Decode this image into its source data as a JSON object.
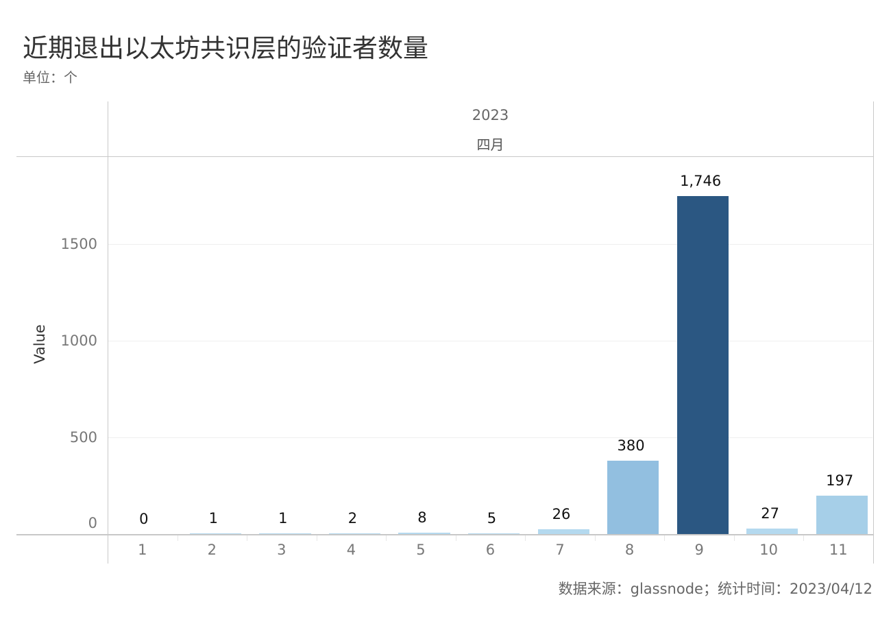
{
  "title": "近期退出以太坊共识层的验证者数量",
  "subtitle": "单位：个",
  "header": {
    "year": "2023",
    "month": "四月"
  },
  "footer": "数据来源：glassnode；统计时间：2023/04/12",
  "colors": {
    "dark": "#2b5782",
    "mid": "#92bfe0",
    "light": "#b4d9ef",
    "light2": "#a6cfe8"
  },
  "chart_data": {
    "type": "bar",
    "title": "近期退出以太坊共识层的验证者数量",
    "subtitle": "单位：个",
    "xlabel": "",
    "ylabel": "Value",
    "column_header": [
      "2023",
      "四月"
    ],
    "categories": [
      "1",
      "2",
      "3",
      "4",
      "5",
      "6",
      "7",
      "8",
      "9",
      "10",
      "11"
    ],
    "values": [
      0,
      1,
      1,
      2,
      8,
      5,
      26,
      380,
      1746,
      27,
      197
    ],
    "value_labels": [
      "0",
      "1",
      "1",
      "2",
      "8",
      "5",
      "26",
      "380",
      "1,746",
      "27",
      "197"
    ],
    "yticks": [
      0,
      500,
      1000,
      1500
    ],
    "ylim": [
      0,
      1950
    ],
    "grid": true,
    "legend": null,
    "source": "数据来源：glassnode；统计时间：2023/04/12"
  }
}
